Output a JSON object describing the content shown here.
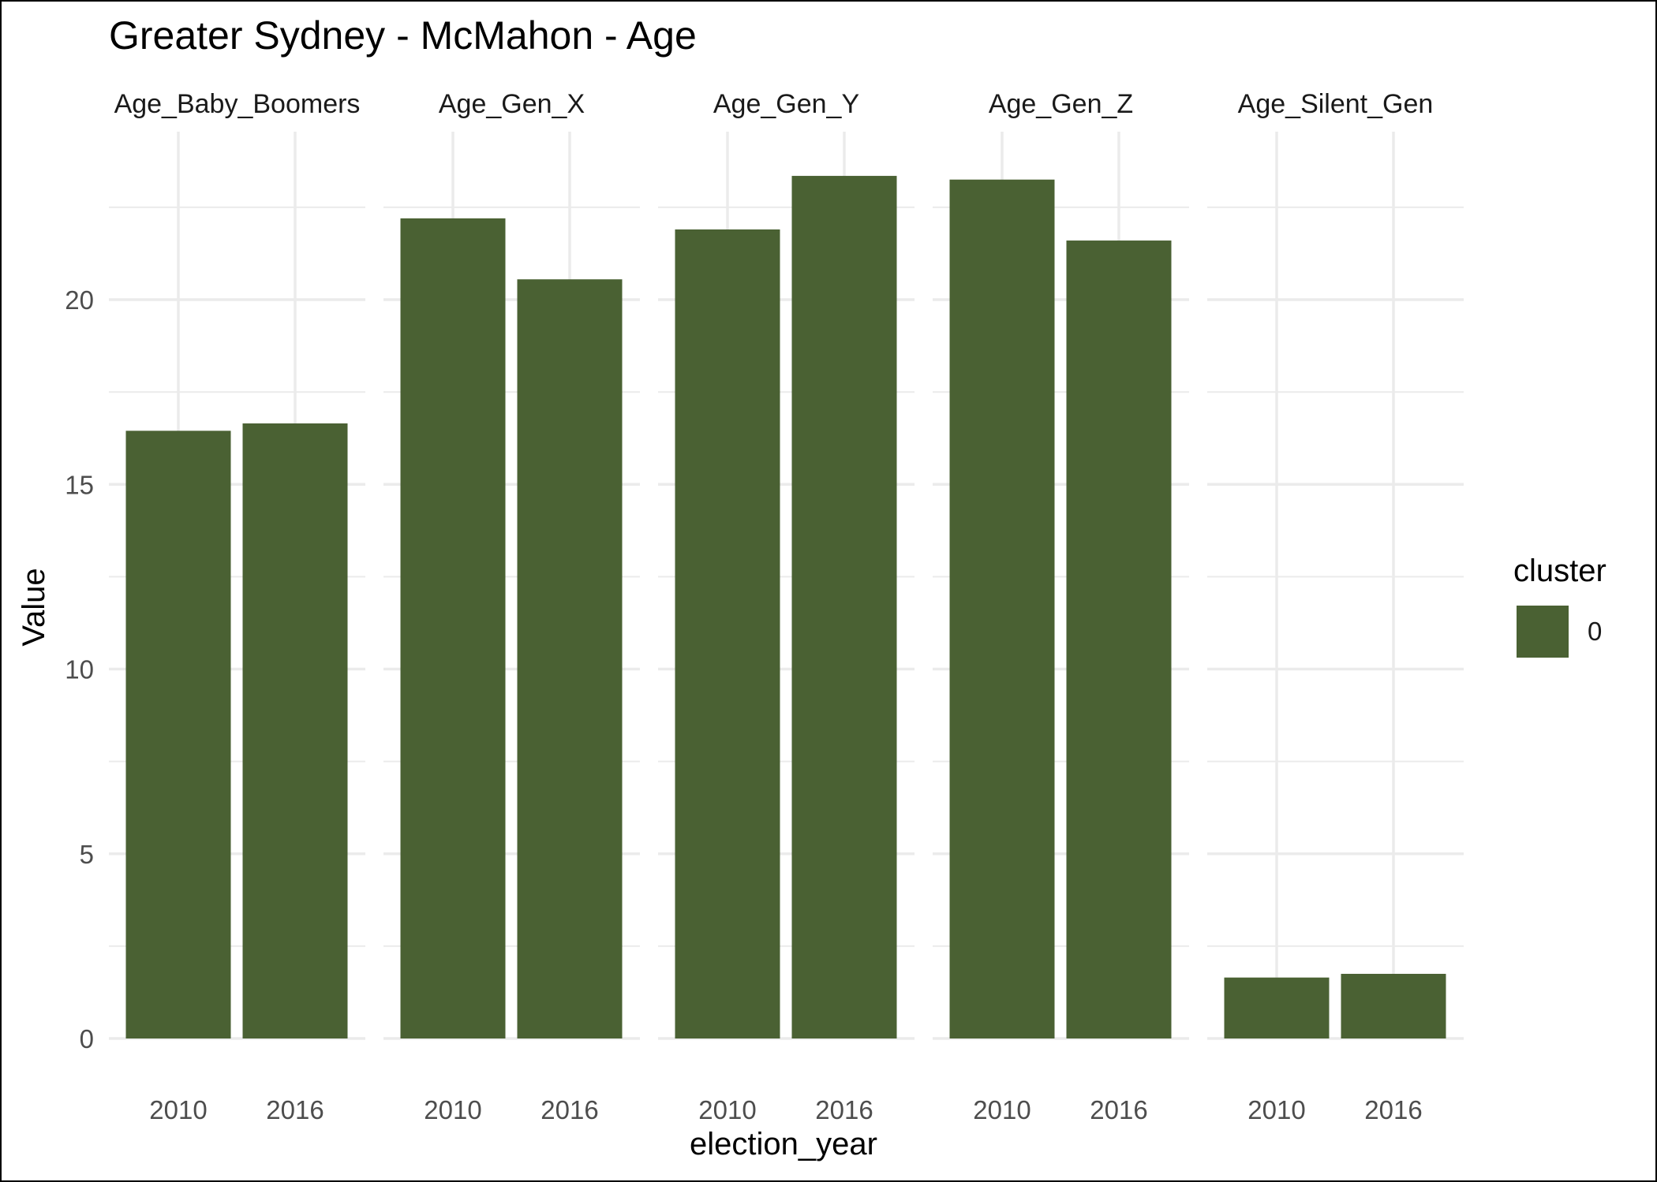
{
  "chart_data": {
    "type": "bar",
    "title": "Greater Sydney - McMahon - Age",
    "xlabel": "election_year",
    "ylabel": "Value",
    "ylim": [
      0,
      24.5
    ],
    "y_ticks": [
      0,
      5,
      10,
      15,
      20
    ],
    "categories": [
      "2010",
      "2016"
    ],
    "facets": [
      {
        "name": "Age_Baby_Boomers",
        "values": [
          16.45,
          16.65
        ]
      },
      {
        "name": "Age_Gen_X",
        "values": [
          22.2,
          20.55
        ]
      },
      {
        "name": "Age_Gen_Y",
        "values": [
          21.9,
          23.35
        ]
      },
      {
        "name": "Age_Gen_Z",
        "values": [
          23.25,
          21.6
        ]
      },
      {
        "name": "Age_Silent_Gen",
        "values": [
          1.65,
          1.75
        ]
      }
    ],
    "legend": {
      "title": "cluster",
      "placement": "right",
      "entries": [
        "0"
      ]
    },
    "grid": true,
    "colors": {
      "bar": "#4a6133",
      "grid": "#ebebeb"
    }
  }
}
